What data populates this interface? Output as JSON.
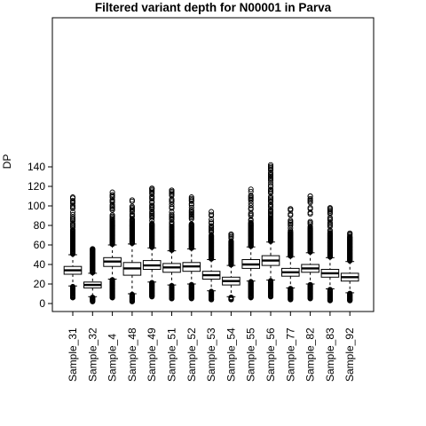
{
  "chart_data": {
    "type": "boxplot",
    "title": "Filtered variant depth for N00001 in Parva",
    "xlabel": "",
    "ylabel": "DP",
    "ylim": [
      0,
      140
    ],
    "yticks": [
      0,
      20,
      40,
      60,
      80,
      100,
      120,
      140
    ],
    "grid": false,
    "legend": "none",
    "colors": {
      "box_fill": "#ffffff",
      "stroke": "#000000"
    },
    "categories": [
      "Sample_31",
      "Sample_32",
      "Sample_4",
      "Sample_48",
      "Sample_49",
      "Sample_51",
      "Sample_52",
      "Sample_53",
      "Sample_54",
      "Sample_55",
      "Sample_56",
      "Sample_77",
      "Sample_82",
      "Sample_83",
      "Sample_92"
    ],
    "boxes": [
      {
        "label": "Sample_31",
        "lw": 18,
        "q1": 30,
        "median": 34,
        "q3": 38,
        "uw": 50,
        "out_min": 6,
        "out_max": 109
      },
      {
        "label": "Sample_32",
        "lw": 7,
        "q1": 16,
        "median": 19,
        "q3": 22,
        "uw": 31,
        "out_min": 2,
        "out_max": 56
      },
      {
        "label": "Sample_4",
        "lw": 25,
        "q1": 38,
        "median": 43,
        "q3": 47,
        "uw": 60,
        "out_min": 6,
        "out_max": 114
      },
      {
        "label": "Sample_48",
        "lw": 10,
        "q1": 29,
        "median": 36,
        "q3": 42,
        "uw": 61,
        "out_min": 2,
        "out_max": 106
      },
      {
        "label": "Sample_49",
        "lw": 22,
        "q1": 35,
        "median": 39,
        "q3": 44,
        "uw": 57,
        "out_min": 7,
        "out_max": 118
      },
      {
        "label": "Sample_51",
        "lw": 19,
        "q1": 32,
        "median": 37,
        "q3": 41,
        "uw": 54,
        "out_min": 5,
        "out_max": 116
      },
      {
        "label": "Sample_52",
        "lw": 20,
        "q1": 33,
        "median": 38,
        "q3": 42,
        "uw": 56,
        "out_min": 5,
        "out_max": 109
      },
      {
        "label": "Sample_53",
        "lw": 13,
        "q1": 25,
        "median": 29,
        "q3": 33,
        "uw": 45,
        "out_min": 4,
        "out_max": 94
      },
      {
        "label": "Sample_54",
        "lw": 7,
        "q1": 19,
        "median": 23,
        "q3": 27,
        "uw": 39,
        "out_min": 4,
        "out_max": 71
      },
      {
        "label": "Sample_55",
        "lw": 23,
        "q1": 36,
        "median": 40,
        "q3": 45,
        "uw": 58,
        "out_min": 6,
        "out_max": 117
      },
      {
        "label": "Sample_56",
        "lw": 24,
        "q1": 39,
        "median": 44,
        "q3": 49,
        "uw": 63,
        "out_min": 7,
        "out_max": 142
      },
      {
        "label": "Sample_77",
        "lw": 16,
        "q1": 28,
        "median": 32,
        "q3": 36,
        "uw": 48,
        "out_min": 4,
        "out_max": 97
      },
      {
        "label": "Sample_82",
        "lw": 20,
        "q1": 32,
        "median": 36,
        "q3": 40,
        "uw": 52,
        "out_min": 5,
        "out_max": 110
      },
      {
        "label": "Sample_83",
        "lw": 15,
        "q1": 27,
        "median": 31,
        "q3": 35,
        "uw": 47,
        "out_min": 3,
        "out_max": 98
      },
      {
        "label": "Sample_92",
        "lw": 11,
        "q1": 23,
        "median": 27,
        "q3": 31,
        "uw": 43,
        "out_min": 3,
        "out_max": 72
      }
    ]
  }
}
